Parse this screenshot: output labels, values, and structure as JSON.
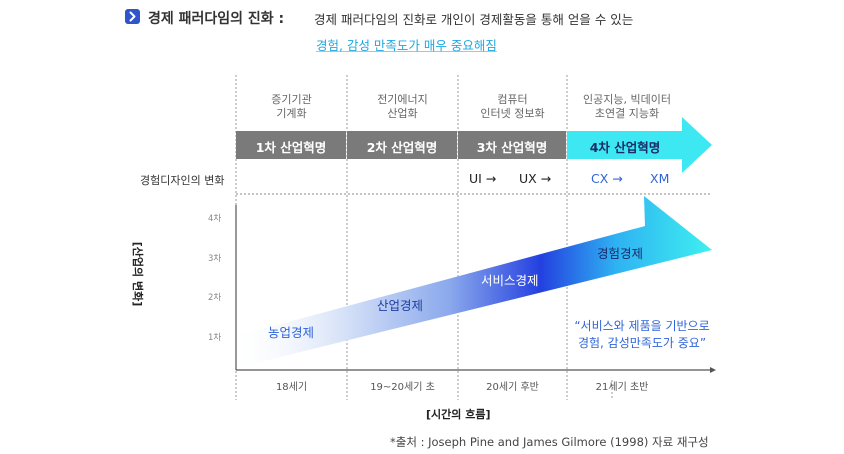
{
  "header": {
    "icon": "chevron-right-icon",
    "title": "경제 패러다임의 진화 :",
    "subtitle": "경제 패러다임의 진화로 개인이 경제활동을 통해 얻을 수 있는",
    "highlight": "경험, 감성 만족도가 매우 중요해짐"
  },
  "eras": [
    {
      "line1": "증기기관",
      "line2": "기계화"
    },
    {
      "line1": "전기에너지",
      "line2": "산업화"
    },
    {
      "line1": "컴퓨터",
      "line2": "인터넷 정보화"
    },
    {
      "line1": "인공지능, 빅데이터",
      "line2": "초연결 지능화"
    }
  ],
  "revolutions": [
    "1차 산업혁명",
    "2차 산업혁명",
    "3차 산업혁명",
    "4차 산업혁명"
  ],
  "experience_row": {
    "label": "경험디자인의 변화",
    "items": [
      "UI →",
      "UX →",
      "CX →",
      "XM"
    ]
  },
  "y_axis": {
    "label": "[산업의 변화]",
    "ticks": [
      "4차",
      "3차",
      "2차",
      "1차"
    ]
  },
  "stages": [
    "농업경제",
    "산업경제",
    "서비스경제",
    "경험경제"
  ],
  "x_axis": {
    "label": "[시간의 흐름]",
    "ticks": [
      "18세기",
      "19~20세기 초",
      "20세기 후반",
      "21세기 초반"
    ]
  },
  "quote": {
    "line1": "“서비스와 제품을 기반으로",
    "line2": "경험, 감성만족도가 중요”"
  },
  "source": "*출처 : Joseph Pine and James Gilmore (1998) 자료 재구성",
  "colors": {
    "accent_blue": "#2f55c9",
    "highlight_cyan": "#1fa8e0",
    "revolution_gray": "#7a7a7a",
    "revolution_cyan": "#3ee8f2",
    "text_blue": "#2f65d9"
  }
}
